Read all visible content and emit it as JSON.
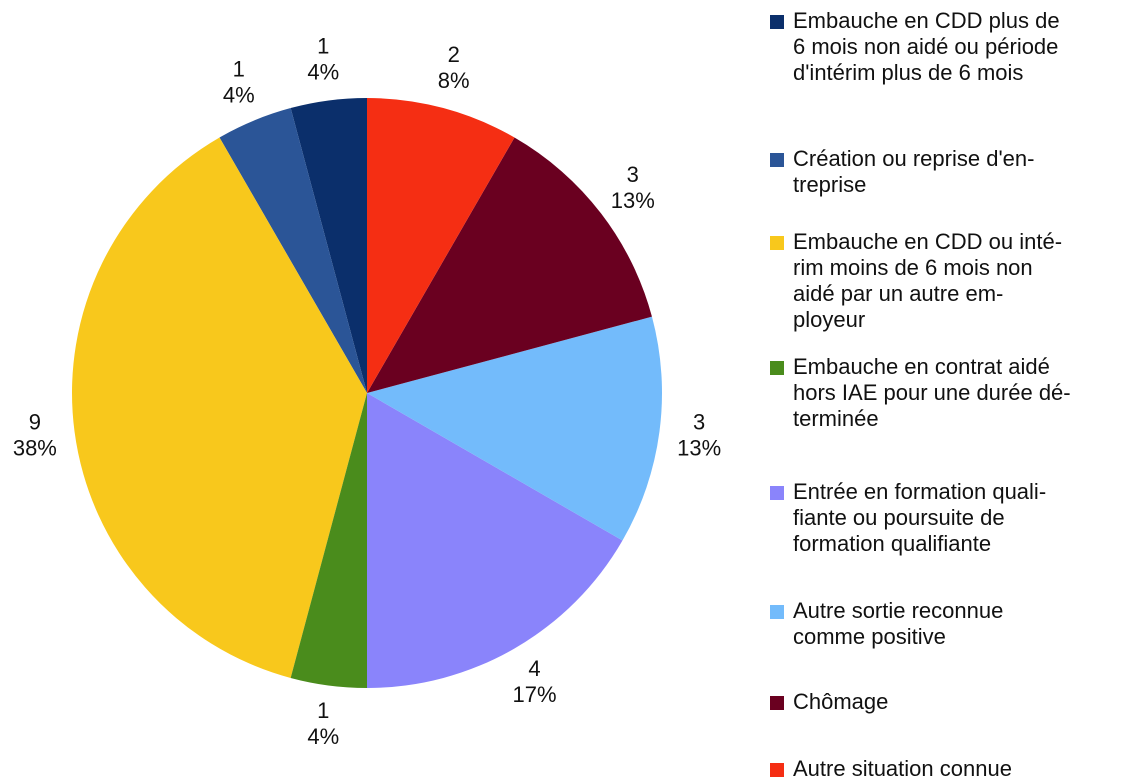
{
  "chart_data": {
    "type": "pie",
    "categories": [
      [
        "Embauche en CDD plus de",
        "6 mois non aidé ou période",
        "d'intérim plus de 6 mois"
      ],
      [
        "Création ou reprise d'en-",
        "treprise"
      ],
      [
        "Embauche en CDD ou inté-",
        "rim moins de 6 mois non",
        "aidé par un autre em-",
        "ployeur"
      ],
      [
        "Embauche en contrat aidé",
        "hors IAE pour une durée dé-",
        "terminée"
      ],
      [
        "Entrée en formation quali-",
        "fiante ou poursuite de",
        "formation qualifiante"
      ],
      [
        "Autre sortie reconnue",
        "comme positive"
      ],
      [
        "Chômage"
      ],
      [
        "Autre situation connue"
      ]
    ],
    "values": [
      1,
      1,
      9,
      1,
      4,
      3,
      3,
      2
    ],
    "percent_labels": [
      "4%",
      "4%",
      "38%",
      "4%",
      "17%",
      "13%",
      "13%",
      "8%"
    ],
    "colors": [
      "#0b2f6b",
      "#2b5597",
      "#f8c81c",
      "#4a8c1c",
      "#8a84fb",
      "#73bbfb",
      "#6a0020",
      "#f52e13"
    ],
    "direction": "counterclockwise",
    "legend": "right"
  }
}
